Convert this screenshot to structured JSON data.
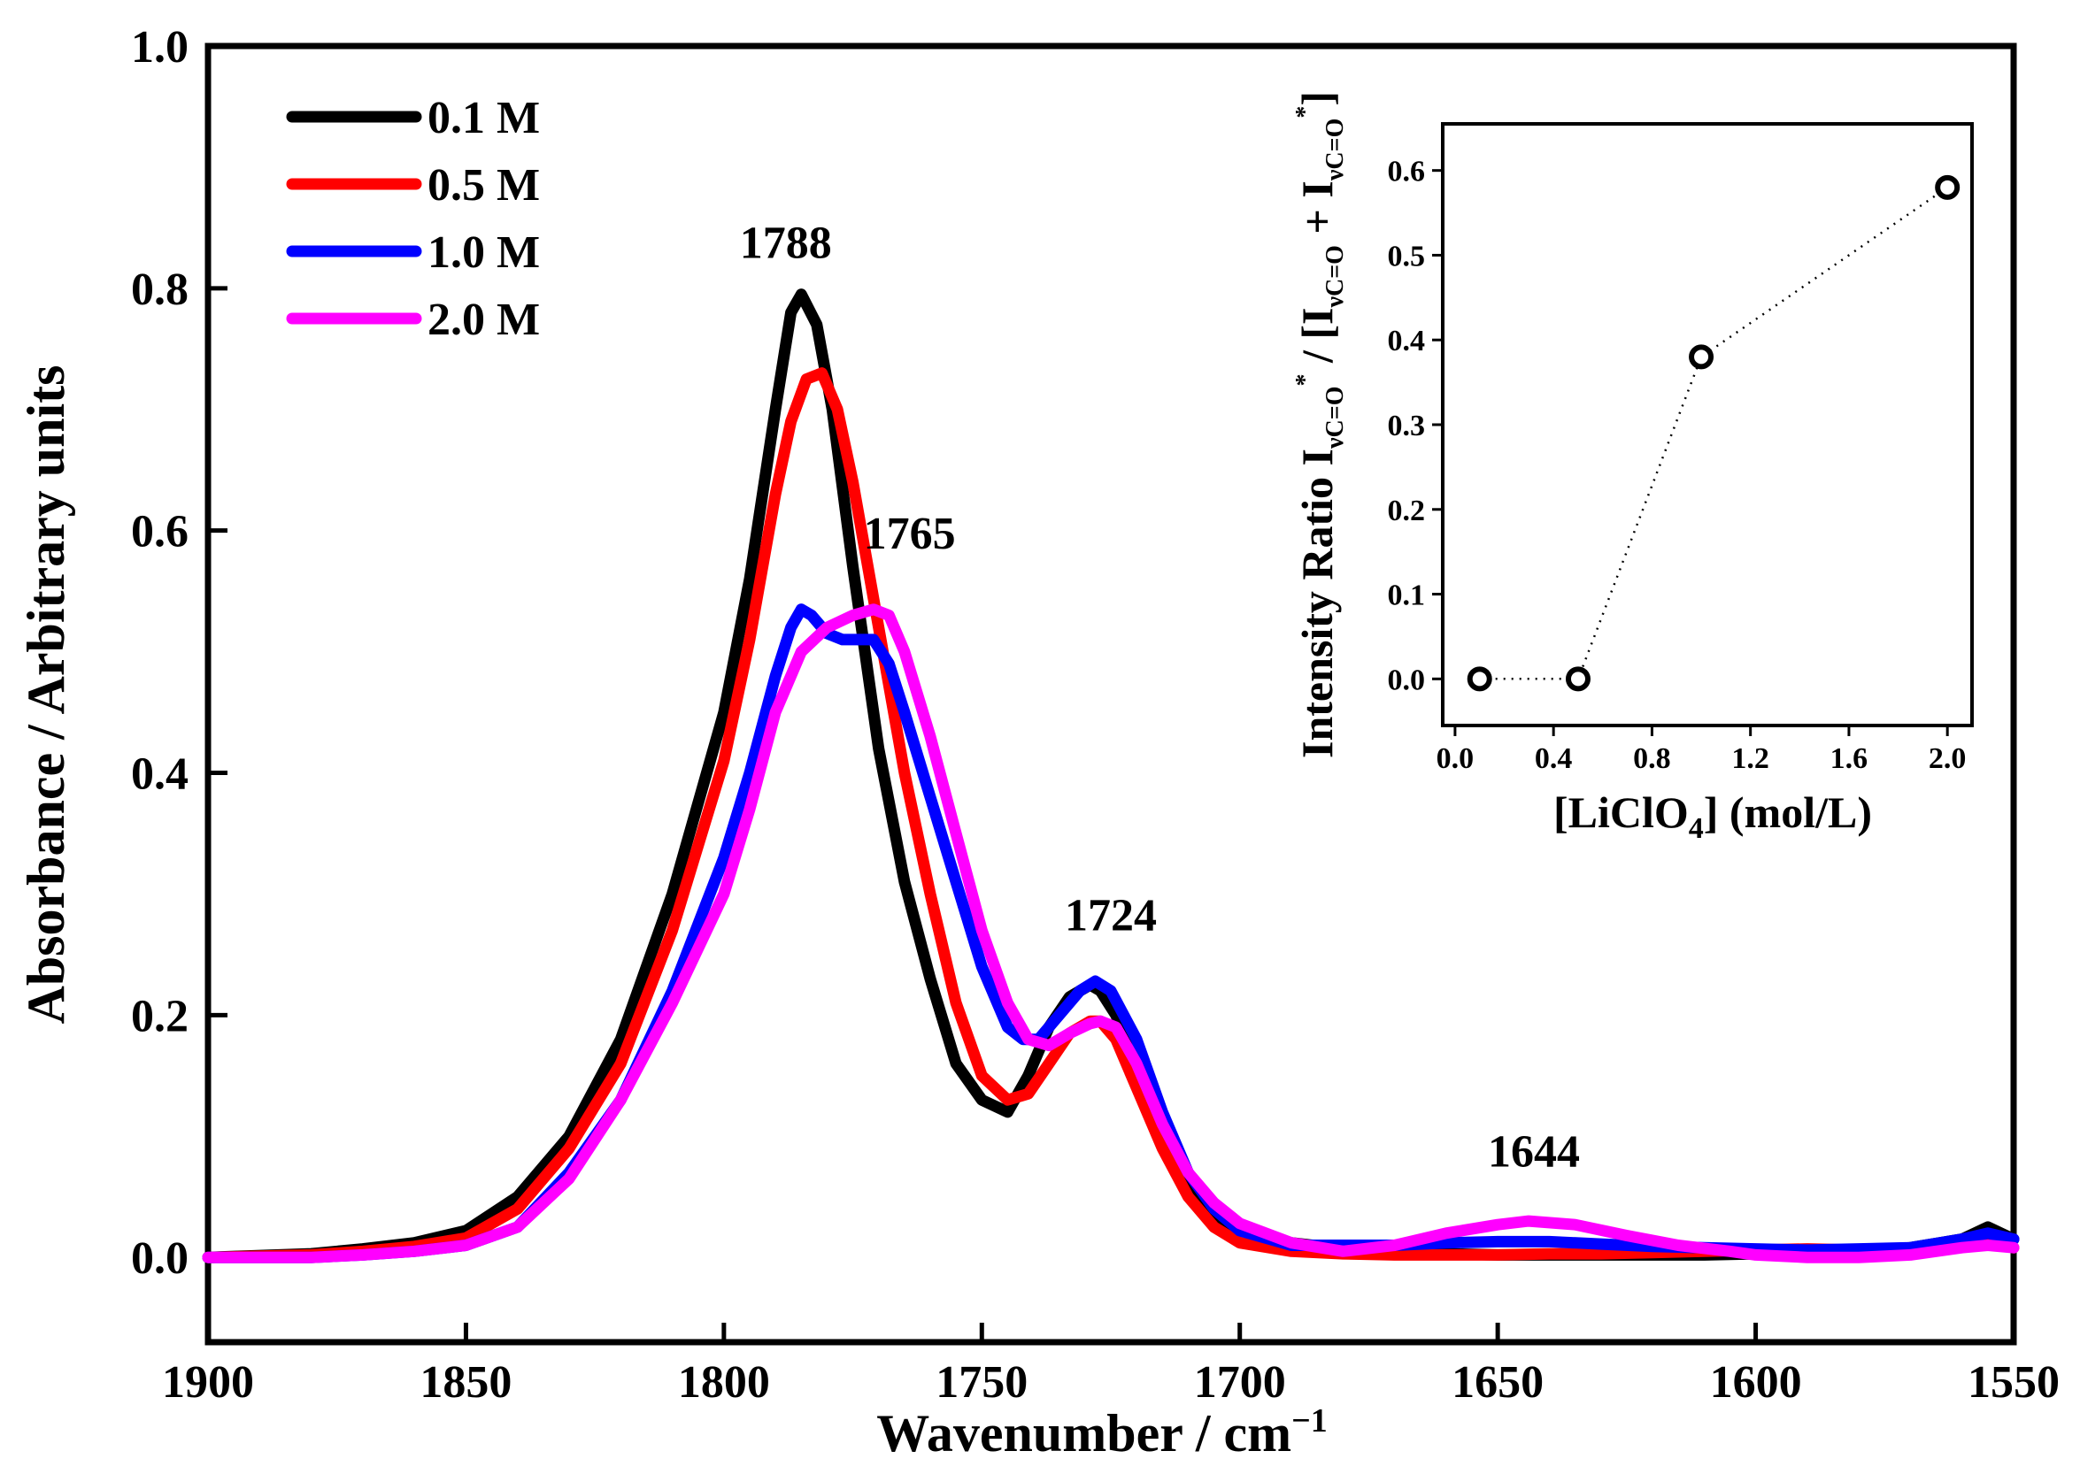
{
  "chart_data": [
    {
      "type": "line",
      "title": "",
      "xlabel": "Wavenumber / cm",
      "xlabel_sup": "−1",
      "ylabel": "Absorbance / Arbitrary units",
      "xlim": [
        1900,
        1550
      ],
      "ylim": [
        -0.07,
        1.0
      ],
      "xticks": [
        1900,
        1850,
        1800,
        1750,
        1700,
        1650,
        1600,
        1550
      ],
      "xtick_labels": [
        "1900",
        "1850",
        "1800",
        "1750",
        "1700",
        "1650",
        "1600",
        "1550"
      ],
      "yticks": [
        0.0,
        0.2,
        0.4,
        0.6,
        0.8,
        1.0
      ],
      "ytick_labels": [
        "0.0",
        "0.2",
        "0.4",
        "0.6",
        "0.8",
        "1.0"
      ],
      "legend_position": "top-left",
      "annotations": [
        {
          "text": "1788",
          "x": 1788,
          "y": 0.825
        },
        {
          "text": "1765",
          "x": 1764,
          "y": 0.585
        },
        {
          "text": "1724",
          "x": 1725,
          "y": 0.27
        },
        {
          "text": "1644",
          "x": 1643,
          "y": 0.075
        }
      ],
      "series": [
        {
          "name": "0.1 M",
          "color": "#000000",
          "x": [
            1900,
            1880,
            1870,
            1860,
            1850,
            1840,
            1830,
            1820,
            1810,
            1800,
            1795,
            1790,
            1787,
            1785,
            1782,
            1779,
            1775,
            1770,
            1765,
            1760,
            1755,
            1750,
            1745,
            1741,
            1737,
            1733,
            1729,
            1727,
            1724,
            1720,
            1715,
            1710,
            1705,
            1700,
            1690,
            1680,
            1670,
            1660,
            1650,
            1640,
            1630,
            1620,
            1610,
            1600,
            1590,
            1580,
            1570,
            1560,
            1555,
            1550
          ],
          "y": [
            0.0,
            0.003,
            0.007,
            0.012,
            0.022,
            0.05,
            0.1,
            0.18,
            0.3,
            0.45,
            0.56,
            0.7,
            0.78,
            0.795,
            0.77,
            0.7,
            0.57,
            0.42,
            0.31,
            0.23,
            0.16,
            0.13,
            0.12,
            0.15,
            0.19,
            0.215,
            0.225,
            0.22,
            0.2,
            0.16,
            0.1,
            0.06,
            0.035,
            0.022,
            0.012,
            0.007,
            0.004,
            0.003,
            0.002,
            0.002,
            0.002,
            0.002,
            0.002,
            0.003,
            0.004,
            0.005,
            0.008,
            0.015,
            0.025,
            0.015
          ]
        },
        {
          "name": "0.5 M",
          "color": "#ff0000",
          "x": [
            1900,
            1880,
            1870,
            1860,
            1850,
            1840,
            1830,
            1820,
            1810,
            1800,
            1795,
            1790,
            1787,
            1784,
            1781,
            1778,
            1775,
            1770,
            1765,
            1760,
            1755,
            1750,
            1745,
            1741,
            1737,
            1733,
            1729,
            1727,
            1724,
            1720,
            1715,
            1710,
            1705,
            1700,
            1690,
            1680,
            1670,
            1660,
            1650,
            1640,
            1630,
            1620,
            1610,
            1600,
            1590,
            1580,
            1570,
            1560,
            1555,
            1550
          ],
          "y": [
            0.0,
            0.002,
            0.005,
            0.009,
            0.016,
            0.04,
            0.09,
            0.16,
            0.27,
            0.41,
            0.51,
            0.63,
            0.69,
            0.725,
            0.73,
            0.7,
            0.64,
            0.52,
            0.4,
            0.3,
            0.21,
            0.15,
            0.13,
            0.135,
            0.16,
            0.185,
            0.195,
            0.195,
            0.18,
            0.14,
            0.09,
            0.05,
            0.025,
            0.012,
            0.005,
            0.003,
            0.002,
            0.002,
            0.002,
            0.003,
            0.003,
            0.004,
            0.005,
            0.006,
            0.007,
            0.006,
            0.006,
            0.01,
            0.012,
            0.008
          ]
        },
        {
          "name": "1.0 M",
          "color": "#0000ff",
          "x": [
            1900,
            1880,
            1870,
            1860,
            1850,
            1840,
            1830,
            1820,
            1810,
            1800,
            1795,
            1790,
            1787,
            1785,
            1783,
            1780,
            1777,
            1774,
            1771,
            1768,
            1765,
            1760,
            1755,
            1750,
            1745,
            1742,
            1739,
            1735,
            1731,
            1728,
            1725,
            1720,
            1715,
            1710,
            1705,
            1700,
            1690,
            1680,
            1670,
            1660,
            1650,
            1640,
            1630,
            1620,
            1610,
            1600,
            1590,
            1580,
            1570,
            1560,
            1555,
            1550
          ],
          "y": [
            0.0,
            0.0,
            0.002,
            0.005,
            0.01,
            0.025,
            0.07,
            0.13,
            0.22,
            0.33,
            0.4,
            0.48,
            0.52,
            0.535,
            0.53,
            0.515,
            0.51,
            0.51,
            0.51,
            0.49,
            0.45,
            0.38,
            0.31,
            0.24,
            0.19,
            0.18,
            0.18,
            0.2,
            0.22,
            0.228,
            0.22,
            0.18,
            0.12,
            0.07,
            0.04,
            0.022,
            0.01,
            0.01,
            0.01,
            0.012,
            0.013,
            0.013,
            0.011,
            0.009,
            0.008,
            0.007,
            0.006,
            0.007,
            0.008,
            0.015,
            0.02,
            0.015
          ]
        },
        {
          "name": "2.0 M",
          "color": "#ff00ff",
          "x": [
            1900,
            1880,
            1870,
            1860,
            1850,
            1840,
            1830,
            1820,
            1810,
            1800,
            1795,
            1790,
            1785,
            1780,
            1775,
            1771,
            1768,
            1765,
            1760,
            1755,
            1750,
            1745,
            1741,
            1737,
            1733,
            1729,
            1727,
            1724,
            1720,
            1715,
            1710,
            1705,
            1700,
            1690,
            1680,
            1670,
            1660,
            1650,
            1644,
            1635,
            1625,
            1615,
            1605,
            1600,
            1590,
            1580,
            1570,
            1560,
            1555,
            1550
          ],
          "y": [
            0.0,
            0.0,
            0.002,
            0.005,
            0.01,
            0.025,
            0.065,
            0.13,
            0.21,
            0.3,
            0.37,
            0.45,
            0.5,
            0.52,
            0.53,
            0.535,
            0.53,
            0.5,
            0.43,
            0.35,
            0.27,
            0.21,
            0.18,
            0.175,
            0.185,
            0.193,
            0.195,
            0.19,
            0.16,
            0.11,
            0.07,
            0.045,
            0.028,
            0.012,
            0.005,
            0.01,
            0.02,
            0.027,
            0.03,
            0.027,
            0.018,
            0.01,
            0.005,
            0.002,
            0.0,
            0.0,
            0.002,
            0.008,
            0.01,
            0.008
          ]
        }
      ]
    },
    {
      "type": "scatter",
      "title": "",
      "xlabel": "[LiClO",
      "xlabel_sub": "4",
      "xlabel_rest": "]  (mol/L)",
      "ylabel": "Intensity Ratio I",
      "ylabel_sub": "νC=O",
      "ylabel_sup": "*",
      "ylabel_rest1": " / [I",
      "ylabel_rest2": " + I",
      "ylabel_rest3": "]",
      "xlim": [
        -0.05,
        2.1
      ],
      "ylim": [
        -0.055,
        0.655
      ],
      "xticks": [
        0.0,
        0.4,
        0.8,
        1.2,
        1.6,
        2.0
      ],
      "xtick_labels": [
        "0.0",
        "0.4",
        "0.8",
        "1.2",
        "1.6",
        "2.0"
      ],
      "yticks": [
        0.0,
        0.1,
        0.2,
        0.3,
        0.4,
        0.5,
        0.6
      ],
      "ytick_labels": [
        "0.0",
        "0.1",
        "0.2",
        "0.3",
        "0.4",
        "0.5",
        "0.6"
      ],
      "x": [
        0.1,
        0.5,
        1.0,
        2.0
      ],
      "y": [
        0.0,
        0.0,
        0.38,
        0.58
      ],
      "marker": "open-circle",
      "connector": "dotted"
    }
  ]
}
